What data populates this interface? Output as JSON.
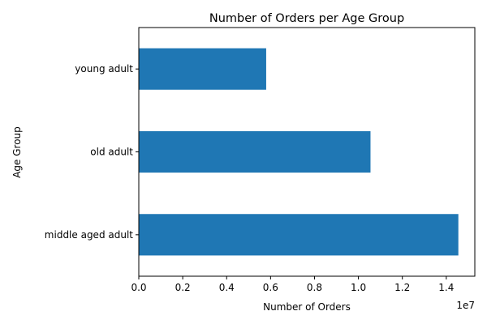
{
  "chart_data": {
    "type": "bar",
    "orientation": "horizontal",
    "title": "Number of Orders per Age Group",
    "xlabel": "Number of Orders",
    "ylabel": "Age Group",
    "x_offset_label": "1e7",
    "categories": [
      "middle aged adult",
      "old adult",
      "young adult"
    ],
    "values": [
      14550000,
      10550000,
      5800000
    ],
    "xlim": [
      0,
      15300000
    ],
    "xticks": [
      0,
      2000000,
      4000000,
      6000000,
      8000000,
      10000000,
      12000000,
      14000000
    ],
    "xtick_labels": [
      "0.0",
      "0.2",
      "0.4",
      "0.6",
      "0.8",
      "1.0",
      "1.2",
      "1.4"
    ],
    "bar_color": "#1f77b4",
    "grid": false,
    "legend": "none"
  }
}
